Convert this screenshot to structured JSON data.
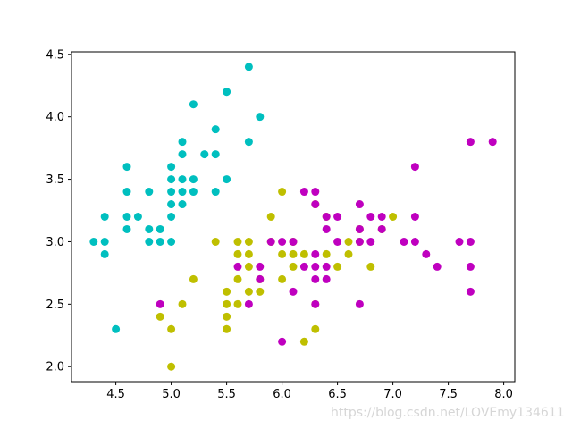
{
  "chart_data": {
    "type": "scatter",
    "title": "",
    "xlabel": "",
    "ylabel": "",
    "xlim": [
      4.1,
      8.1
    ],
    "ylim": [
      1.88,
      4.52
    ],
    "grid": false,
    "legend": "none",
    "x_ticks": [
      "4.5",
      "5.0",
      "5.5",
      "6.0",
      "6.5",
      "7.0",
      "7.5",
      "8.0"
    ],
    "y_ticks": [
      "2.0",
      "2.5",
      "3.0",
      "3.5",
      "4.0",
      "4.5"
    ],
    "series": [
      {
        "color": "#00bfbf",
        "points": [
          [
            4.3,
            3.0
          ],
          [
            4.4,
            2.9
          ],
          [
            4.4,
            3.0
          ],
          [
            4.4,
            3.2
          ],
          [
            4.5,
            2.3
          ],
          [
            4.6,
            3.1
          ],
          [
            4.6,
            3.2
          ],
          [
            4.6,
            3.4
          ],
          [
            4.6,
            3.6
          ],
          [
            4.7,
            3.2
          ],
          [
            4.8,
            3.0
          ],
          [
            4.8,
            3.1
          ],
          [
            4.8,
            3.4
          ],
          [
            4.9,
            3.0
          ],
          [
            4.9,
            3.1
          ],
          [
            5.0,
            3.0
          ],
          [
            5.0,
            3.2
          ],
          [
            5.0,
            3.3
          ],
          [
            5.0,
            3.4
          ],
          [
            5.0,
            3.5
          ],
          [
            5.0,
            3.6
          ],
          [
            5.1,
            3.3
          ],
          [
            5.1,
            3.4
          ],
          [
            5.1,
            3.5
          ],
          [
            5.1,
            3.7
          ],
          [
            5.1,
            3.8
          ],
          [
            5.2,
            3.4
          ],
          [
            5.2,
            3.5
          ],
          [
            5.2,
            4.1
          ],
          [
            5.3,
            3.7
          ],
          [
            5.4,
            3.4
          ],
          [
            5.4,
            3.7
          ],
          [
            5.4,
            3.9
          ],
          [
            5.5,
            3.5
          ],
          [
            5.5,
            4.2
          ],
          [
            5.7,
            3.8
          ],
          [
            5.7,
            4.4
          ],
          [
            5.8,
            4.0
          ]
        ]
      },
      {
        "color": "#bfbf00",
        "points": [
          [
            4.9,
            2.4
          ],
          [
            5.0,
            2.0
          ],
          [
            5.0,
            2.3
          ],
          [
            5.1,
            2.5
          ],
          [
            5.2,
            2.7
          ],
          [
            5.4,
            3.0
          ],
          [
            5.5,
            2.3
          ],
          [
            5.5,
            2.4
          ],
          [
            5.5,
            2.5
          ],
          [
            5.5,
            2.6
          ],
          [
            5.6,
            2.5
          ],
          [
            5.6,
            2.7
          ],
          [
            5.6,
            2.9
          ],
          [
            5.6,
            3.0
          ],
          [
            5.7,
            2.6
          ],
          [
            5.7,
            2.8
          ],
          [
            5.7,
            2.9
          ],
          [
            5.7,
            3.0
          ],
          [
            5.8,
            2.6
          ],
          [
            5.8,
            2.7
          ],
          [
            5.9,
            3.0
          ],
          [
            5.9,
            3.2
          ],
          [
            6.0,
            2.7
          ],
          [
            6.0,
            2.9
          ],
          [
            6.0,
            3.4
          ],
          [
            6.1,
            2.8
          ],
          [
            6.1,
            2.9
          ],
          [
            6.1,
            3.0
          ],
          [
            6.2,
            2.2
          ],
          [
            6.2,
            2.9
          ],
          [
            6.3,
            2.3
          ],
          [
            6.3,
            2.5
          ],
          [
            6.3,
            3.3
          ],
          [
            6.4,
            2.9
          ],
          [
            6.4,
            3.2
          ],
          [
            6.5,
            2.8
          ],
          [
            6.6,
            2.9
          ],
          [
            6.6,
            3.0
          ],
          [
            6.7,
            3.0
          ],
          [
            6.7,
            3.1
          ],
          [
            6.8,
            2.8
          ],
          [
            6.9,
            3.1
          ],
          [
            7.0,
            3.2
          ]
        ]
      },
      {
        "color": "#bf00bf",
        "points": [
          [
            4.9,
            2.5
          ],
          [
            5.6,
            2.8
          ],
          [
            5.7,
            2.5
          ],
          [
            5.8,
            2.7
          ],
          [
            5.8,
            2.8
          ],
          [
            5.9,
            3.0
          ],
          [
            6.0,
            2.2
          ],
          [
            6.0,
            3.0
          ],
          [
            6.1,
            2.6
          ],
          [
            6.1,
            3.0
          ],
          [
            6.2,
            2.8
          ],
          [
            6.2,
            3.4
          ],
          [
            6.3,
            2.5
          ],
          [
            6.3,
            2.7
          ],
          [
            6.3,
            2.8
          ],
          [
            6.3,
            2.9
          ],
          [
            6.3,
            3.3
          ],
          [
            6.3,
            3.4
          ],
          [
            6.4,
            2.7
          ],
          [
            6.4,
            2.8
          ],
          [
            6.4,
            3.1
          ],
          [
            6.4,
            3.2
          ],
          [
            6.5,
            3.0
          ],
          [
            6.5,
            3.2
          ],
          [
            6.7,
            2.5
          ],
          [
            6.7,
            3.0
          ],
          [
            6.7,
            3.1
          ],
          [
            6.7,
            3.3
          ],
          [
            6.8,
            3.0
          ],
          [
            6.8,
            3.2
          ],
          [
            6.9,
            3.1
          ],
          [
            6.9,
            3.2
          ],
          [
            7.1,
            3.0
          ],
          [
            7.2,
            3.0
          ],
          [
            7.2,
            3.2
          ],
          [
            7.2,
            3.6
          ],
          [
            7.3,
            2.9
          ],
          [
            7.4,
            2.8
          ],
          [
            7.6,
            3.0
          ],
          [
            7.7,
            2.6
          ],
          [
            7.7,
            2.8
          ],
          [
            7.7,
            3.0
          ],
          [
            7.7,
            3.8
          ],
          [
            7.9,
            3.8
          ]
        ]
      }
    ]
  },
  "watermark": "https://blog.csdn.net/LOVEmy134611"
}
